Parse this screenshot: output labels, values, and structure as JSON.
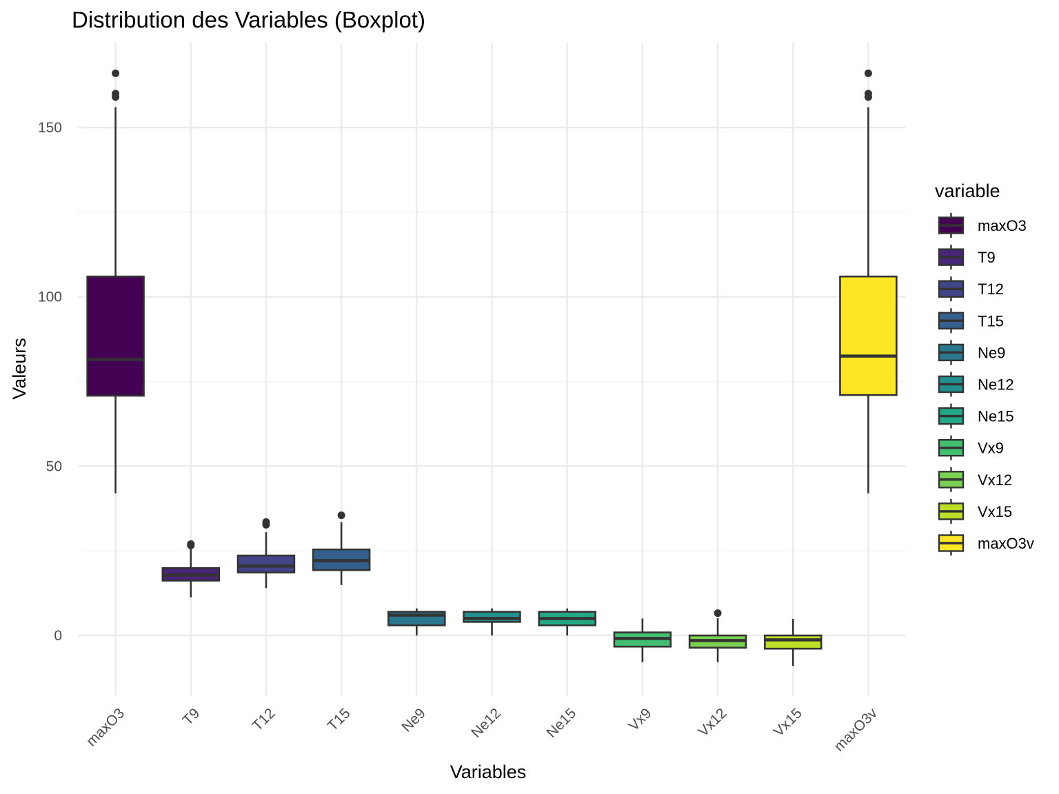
{
  "chart_data": {
    "type": "boxplot",
    "title": "Distribution des Variables (Boxplot)",
    "xlabel": "Variables",
    "ylabel": "Valeurs",
    "ylim": [
      -18,
      167
    ],
    "y_ticks": [
      0,
      50,
      100,
      150
    ],
    "grid": true,
    "legend_title": "variable",
    "legend_position": "right",
    "categories": [
      "maxO3",
      "T9",
      "T12",
      "T15",
      "Ne9",
      "Ne12",
      "Ne15",
      "Vx9",
      "Vx12",
      "Vx15",
      "maxO3v"
    ],
    "series": [
      {
        "name": "maxO3",
        "color": "#440154",
        "whisker_low": 42,
        "q1": 70.8,
        "median": 81.5,
        "q3": 106,
        "whisker_high": 156,
        "outliers": [
          159,
          160,
          166
        ]
      },
      {
        "name": "T9",
        "color": "#482576",
        "whisker_low": 11.3,
        "q1": 16.2,
        "median": 17.8,
        "q3": 19.9,
        "whisker_high": 25.8,
        "outliers": [
          26.6,
          27.0
        ]
      },
      {
        "name": "T12",
        "color": "#414487",
        "whisker_low": 14,
        "q1": 18.6,
        "median": 20.5,
        "q3": 23.6,
        "whisker_high": 30.5,
        "outliers": [
          32.7,
          33.5
        ]
      },
      {
        "name": "T15",
        "color": "#35608D",
        "whisker_low": 14.9,
        "q1": 19.3,
        "median": 22.1,
        "q3": 25.4,
        "whisker_high": 33.5,
        "outliers": [
          35.5
        ]
      },
      {
        "name": "Ne9",
        "color": "#2A788E",
        "whisker_low": 0,
        "q1": 3,
        "median": 6,
        "q3": 7,
        "whisker_high": 8,
        "outliers": []
      },
      {
        "name": "Ne12",
        "color": "#21908C",
        "whisker_low": 0,
        "q1": 4,
        "median": 5,
        "q3": 7,
        "whisker_high": 8,
        "outliers": []
      },
      {
        "name": "Ne15",
        "color": "#22A884",
        "whisker_low": 0,
        "q1": 3,
        "median": 5,
        "q3": 7,
        "whisker_high": 8,
        "outliers": []
      },
      {
        "name": "Vx9",
        "color": "#43BF71",
        "whisker_low": -7.9,
        "q1": -3.3,
        "median": -0.9,
        "q3": 0.9,
        "whisker_high": 5,
        "outliers": []
      },
      {
        "name": "Vx12",
        "color": "#7AD151",
        "whisker_low": -7.9,
        "q1": -3.6,
        "median": -1.5,
        "q3": 0,
        "whisker_high": 5.1,
        "outliers": [
          6.6
        ]
      },
      {
        "name": "Vx15",
        "color": "#BBDF27",
        "whisker_low": -9,
        "q1": -3.9,
        "median": -1.3,
        "q3": 0,
        "whisker_high": 4.9,
        "outliers": []
      },
      {
        "name": "maxO3v",
        "color": "#FDE725",
        "whisker_low": 42,
        "q1": 71,
        "median": 82.5,
        "q3": 106,
        "whisker_high": 156,
        "outliers": [
          159,
          160,
          166
        ]
      }
    ]
  }
}
